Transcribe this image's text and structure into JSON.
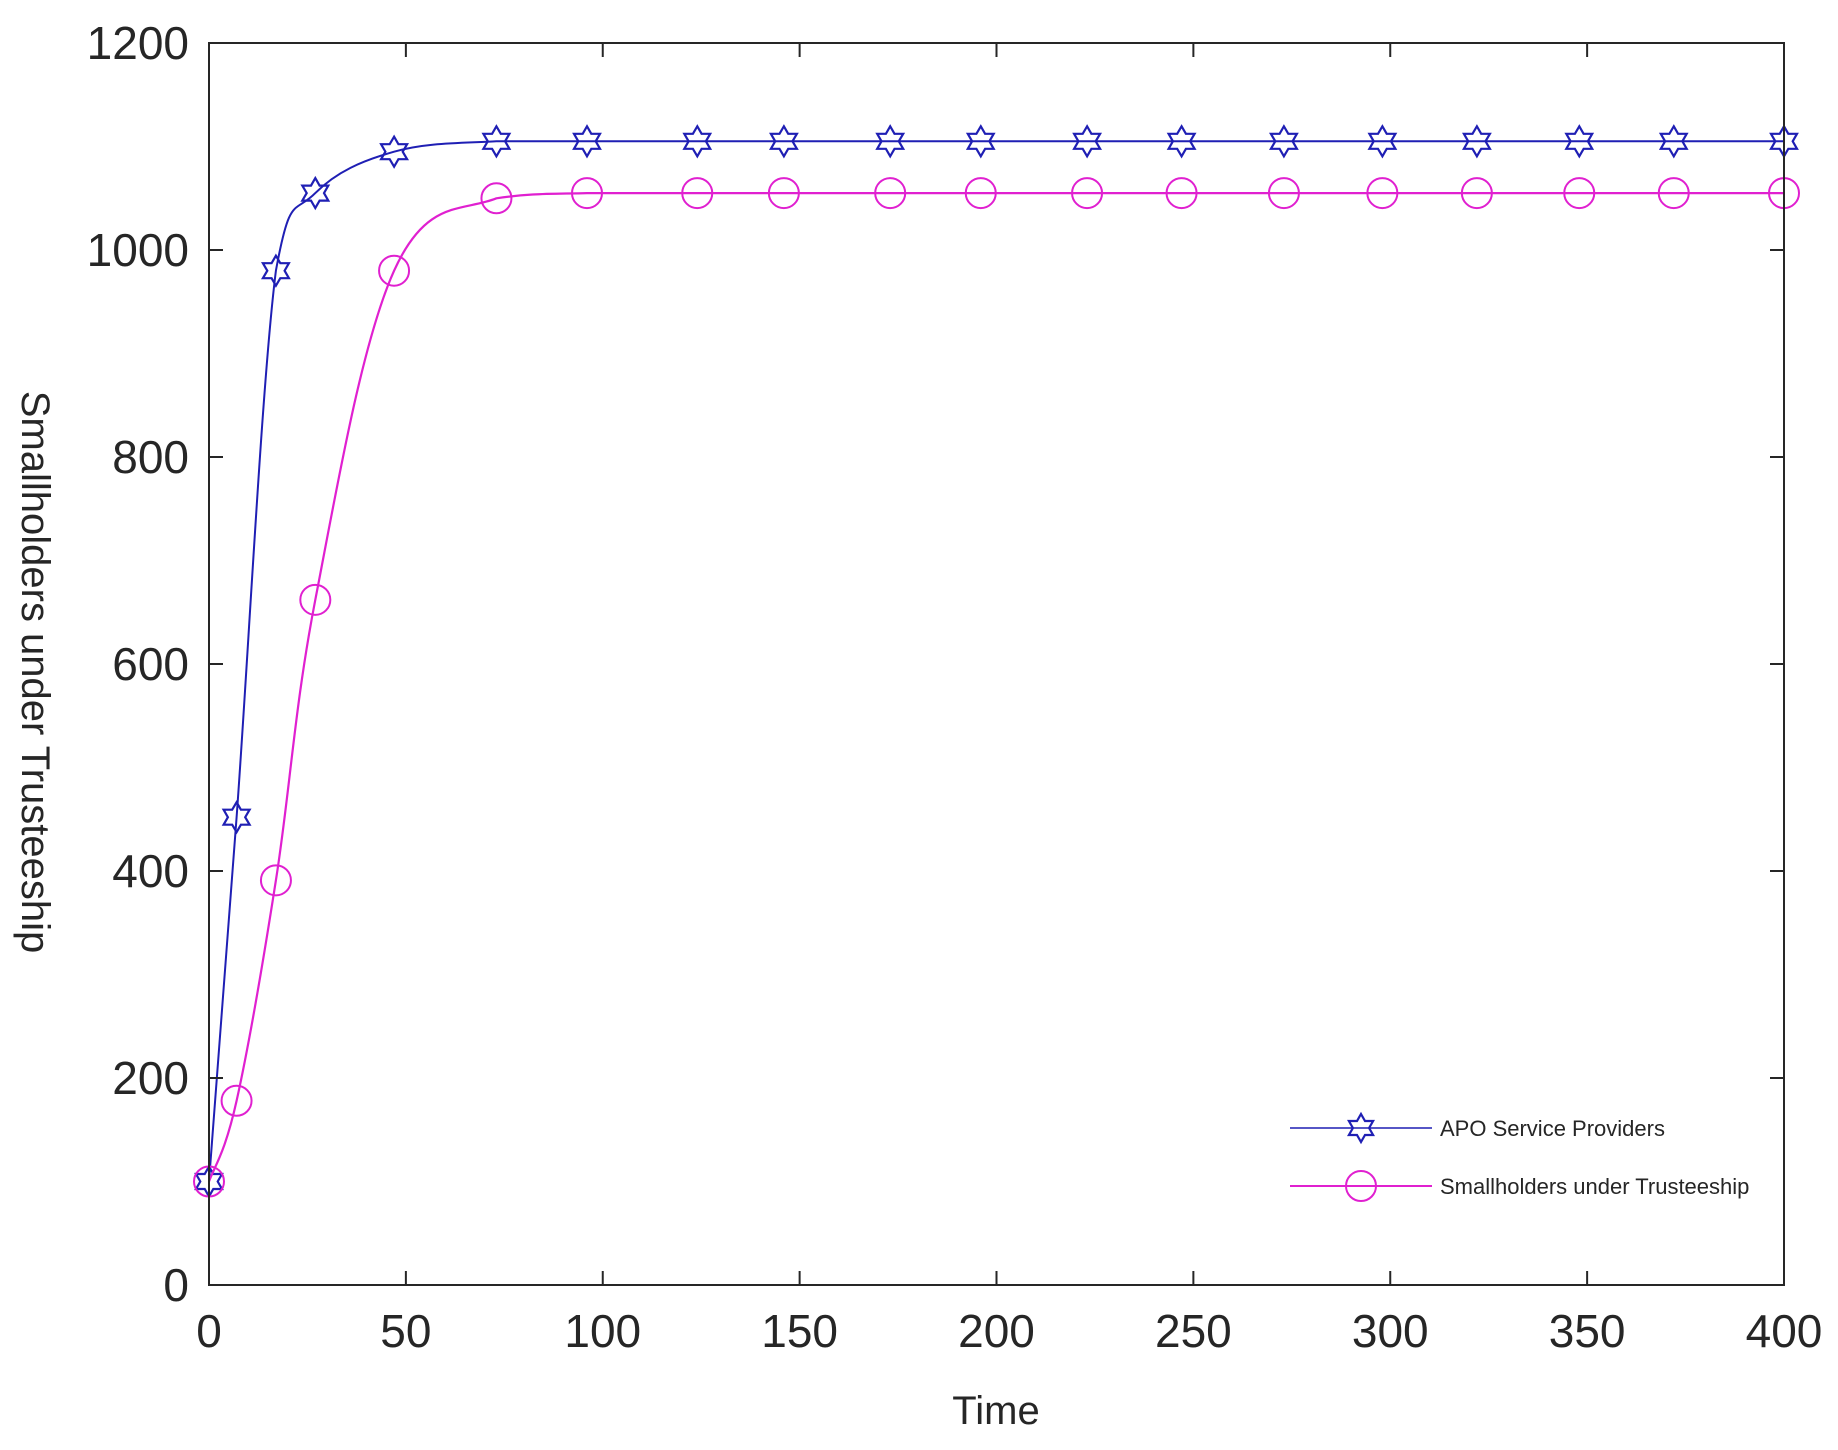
{
  "chart_data": {
    "type": "line",
    "title": "",
    "xlabel": "Time",
    "ylabel": "Smallholders under Trusteeship",
    "xlim": [
      0,
      400
    ],
    "ylim": [
      0,
      1200
    ],
    "xticks": [
      0,
      50,
      100,
      150,
      200,
      250,
      300,
      350,
      400
    ],
    "yticks": [
      0,
      200,
      400,
      600,
      800,
      1000,
      1200
    ],
    "grid": false,
    "legend_position": "lower right",
    "series": [
      {
        "name": "APO Service Providers",
        "color": "#1f1fb4",
        "marker": "hexagram",
        "x": [
          0,
          7,
          17,
          27,
          47,
          73,
          96,
          124,
          146,
          173,
          196,
          223,
          247,
          273,
          298,
          322,
          348,
          372,
          400
        ],
        "values": [
          100,
          452,
          980,
          1055,
          1095,
          1105,
          1105,
          1105,
          1105,
          1105,
          1105,
          1105,
          1105,
          1105,
          1105,
          1105,
          1105,
          1105,
          1105
        ]
      },
      {
        "name": "Smallholders under Trusteeship",
        "color": "#e020d0",
        "marker": "circle",
        "x": [
          0,
          7,
          17,
          27,
          47,
          73,
          96,
          124,
          146,
          173,
          196,
          223,
          247,
          273,
          298,
          322,
          348,
          372,
          400
        ],
        "values": [
          100,
          178,
          391,
          662,
          980,
          1050,
          1055,
          1055,
          1055,
          1055,
          1055,
          1055,
          1055,
          1055,
          1055,
          1055,
          1055,
          1055,
          1055
        ]
      }
    ]
  },
  "legend": {
    "items": [
      {
        "label": "APO Service Providers"
      },
      {
        "label": "Smallholders under Trusteeship"
      }
    ]
  },
  "axes": {
    "x_label": "Time",
    "y_label": "Smallholders under Trusteeship"
  }
}
